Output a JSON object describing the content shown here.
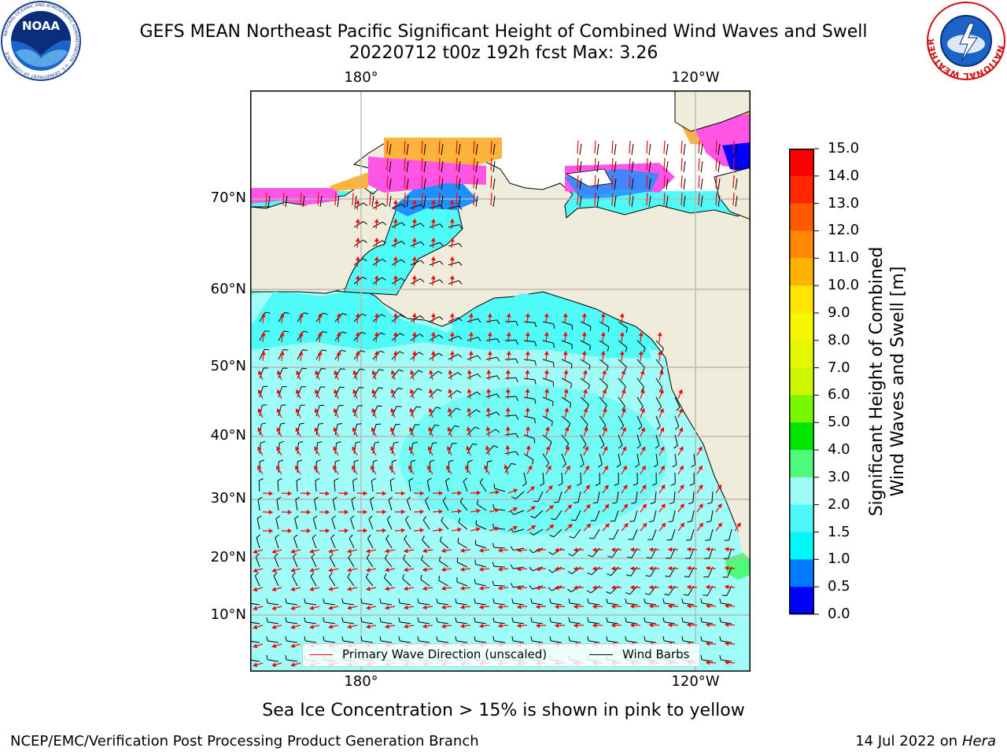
{
  "header": {
    "title_line1": "GEFS MEAN Northeast Pacific Significant Height of Combined Wind Waves and Swell",
    "title_line2": "20220712 t00z 192h fcst   Max: 3.26",
    "left_logo": "NOAA",
    "left_logo_ring": "NATIONAL OCEANIC AND ATMOSPHERIC ADMINISTRATION · U.S. DEPARTMENT OF COMMERCE",
    "right_logo_ring": "NATIONAL WEATHER SERVICE"
  },
  "map": {
    "lon_labels_top": [
      "180°",
      "120°W"
    ],
    "lon_labels_bottom": [
      "180°",
      "120°W"
    ],
    "lat_labels": [
      "70°N",
      "60°N",
      "50°N",
      "40°N",
      "30°N",
      "20°N",
      "10°N"
    ],
    "colors": {
      "land": "#efecdc",
      "ocean_main": "#9ffcf6",
      "ocean_mid": "#4ffbf6",
      "ocean_bright": "#00f7f7",
      "ice_pink": "#ff55e6",
      "ice_orange": "#ffb33f",
      "ice_magenta": "#ff1dd8",
      "wave_arrow": "#ff0000",
      "wind_barb": "#000000",
      "grid": "#b8b8b8"
    }
  },
  "legend": {
    "wave_label": "Primary Wave Direction (unscaled)",
    "wind_label": "Wind Barbs"
  },
  "colorbar": {
    "label_line1": "Significant Height of Combined",
    "label_line2": "Wind Waves and Swell [m]",
    "ticks": [
      "15.0",
      "14.0",
      "13.0",
      "12.0",
      "11.0",
      "10.0",
      "9.0",
      "8.0",
      "7.0",
      "6.0",
      "5.0",
      "4.0",
      "3.0",
      "2.0",
      "1.5",
      "1.0",
      "0.5",
      "0.0"
    ],
    "colors": [
      "#ff0000",
      "#ff2600",
      "#ff5a00",
      "#ff8800",
      "#ffb300",
      "#ffe500",
      "#f7f700",
      "#e5f700",
      "#cdf700",
      "#77f700",
      "#00e500",
      "#4ff97a",
      "#a0fbf7",
      "#4ff8f8",
      "#00f8f8",
      "#007bff",
      "#0000ff"
    ]
  },
  "footer": {
    "note": "Sea Ice Concentration > 15% is shown in pink to yellow",
    "credit": "NCEP/EMC/Verification Post Processing Product Generation Branch",
    "date_prefix": "14 Jul 2022 on ",
    "machine": "Hera"
  }
}
